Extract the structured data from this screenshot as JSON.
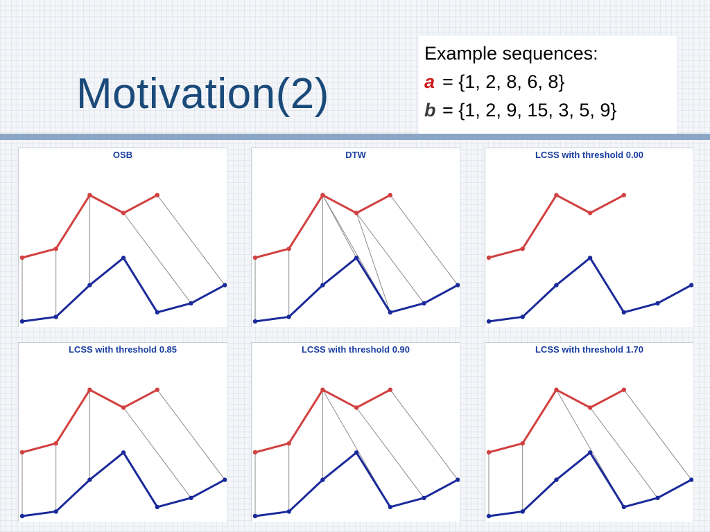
{
  "slide": {
    "title": "Motivation(2)",
    "sequences": {
      "heading": "Example sequences:",
      "a_var": "a",
      "a_text": "= {1, 2, 8, 6, 8}",
      "b_var": "b",
      "b_text": "= {1, 2, 9, 15, 3, 5, 9}"
    }
  },
  "colors": {
    "title": "#1a4a7a",
    "seq_a": "#d24040",
    "seq_b": "#1a2a9a",
    "panel_title": "#1a3ea0",
    "match": "#8a8a8a"
  },
  "panels": [
    {
      "title": "OSB",
      "matches": [
        [
          0,
          0
        ],
        [
          1,
          1
        ],
        [
          2,
          2
        ],
        [
          3,
          5
        ],
        [
          4,
          6
        ]
      ]
    },
    {
      "title": "DTW",
      "matches": [
        [
          0,
          0
        ],
        [
          1,
          1
        ],
        [
          2,
          2
        ],
        [
          2,
          3
        ],
        [
          2,
          4
        ],
        [
          3,
          4
        ],
        [
          3,
          5
        ],
        [
          4,
          6
        ]
      ]
    },
    {
      "title": "LCSS with threshold 0.00",
      "matches": []
    },
    {
      "title": "LCSS with threshold 0.85",
      "matches": [
        [
          0,
          0
        ],
        [
          1,
          1
        ],
        [
          2,
          2
        ],
        [
          3,
          5
        ],
        [
          4,
          6
        ]
      ]
    },
    {
      "title": "LCSS with threshold 0.90",
      "matches": [
        [
          0,
          0
        ],
        [
          1,
          1
        ],
        [
          2,
          2
        ],
        [
          2,
          4
        ],
        [
          3,
          5
        ],
        [
          4,
          6
        ]
      ]
    },
    {
      "title": "LCSS with threshold 1.70",
      "matches": [
        [
          0,
          0
        ],
        [
          1,
          1
        ],
        [
          2,
          4
        ],
        [
          3,
          5
        ],
        [
          4,
          6
        ]
      ]
    }
  ],
  "chart_data": {
    "type": "line",
    "series": [
      {
        "name": "a",
        "values": [
          1,
          2,
          8,
          6,
          8
        ]
      },
      {
        "name": "b",
        "values": [
          1,
          2,
          9,
          15,
          3,
          5,
          9
        ]
      }
    ]
  }
}
